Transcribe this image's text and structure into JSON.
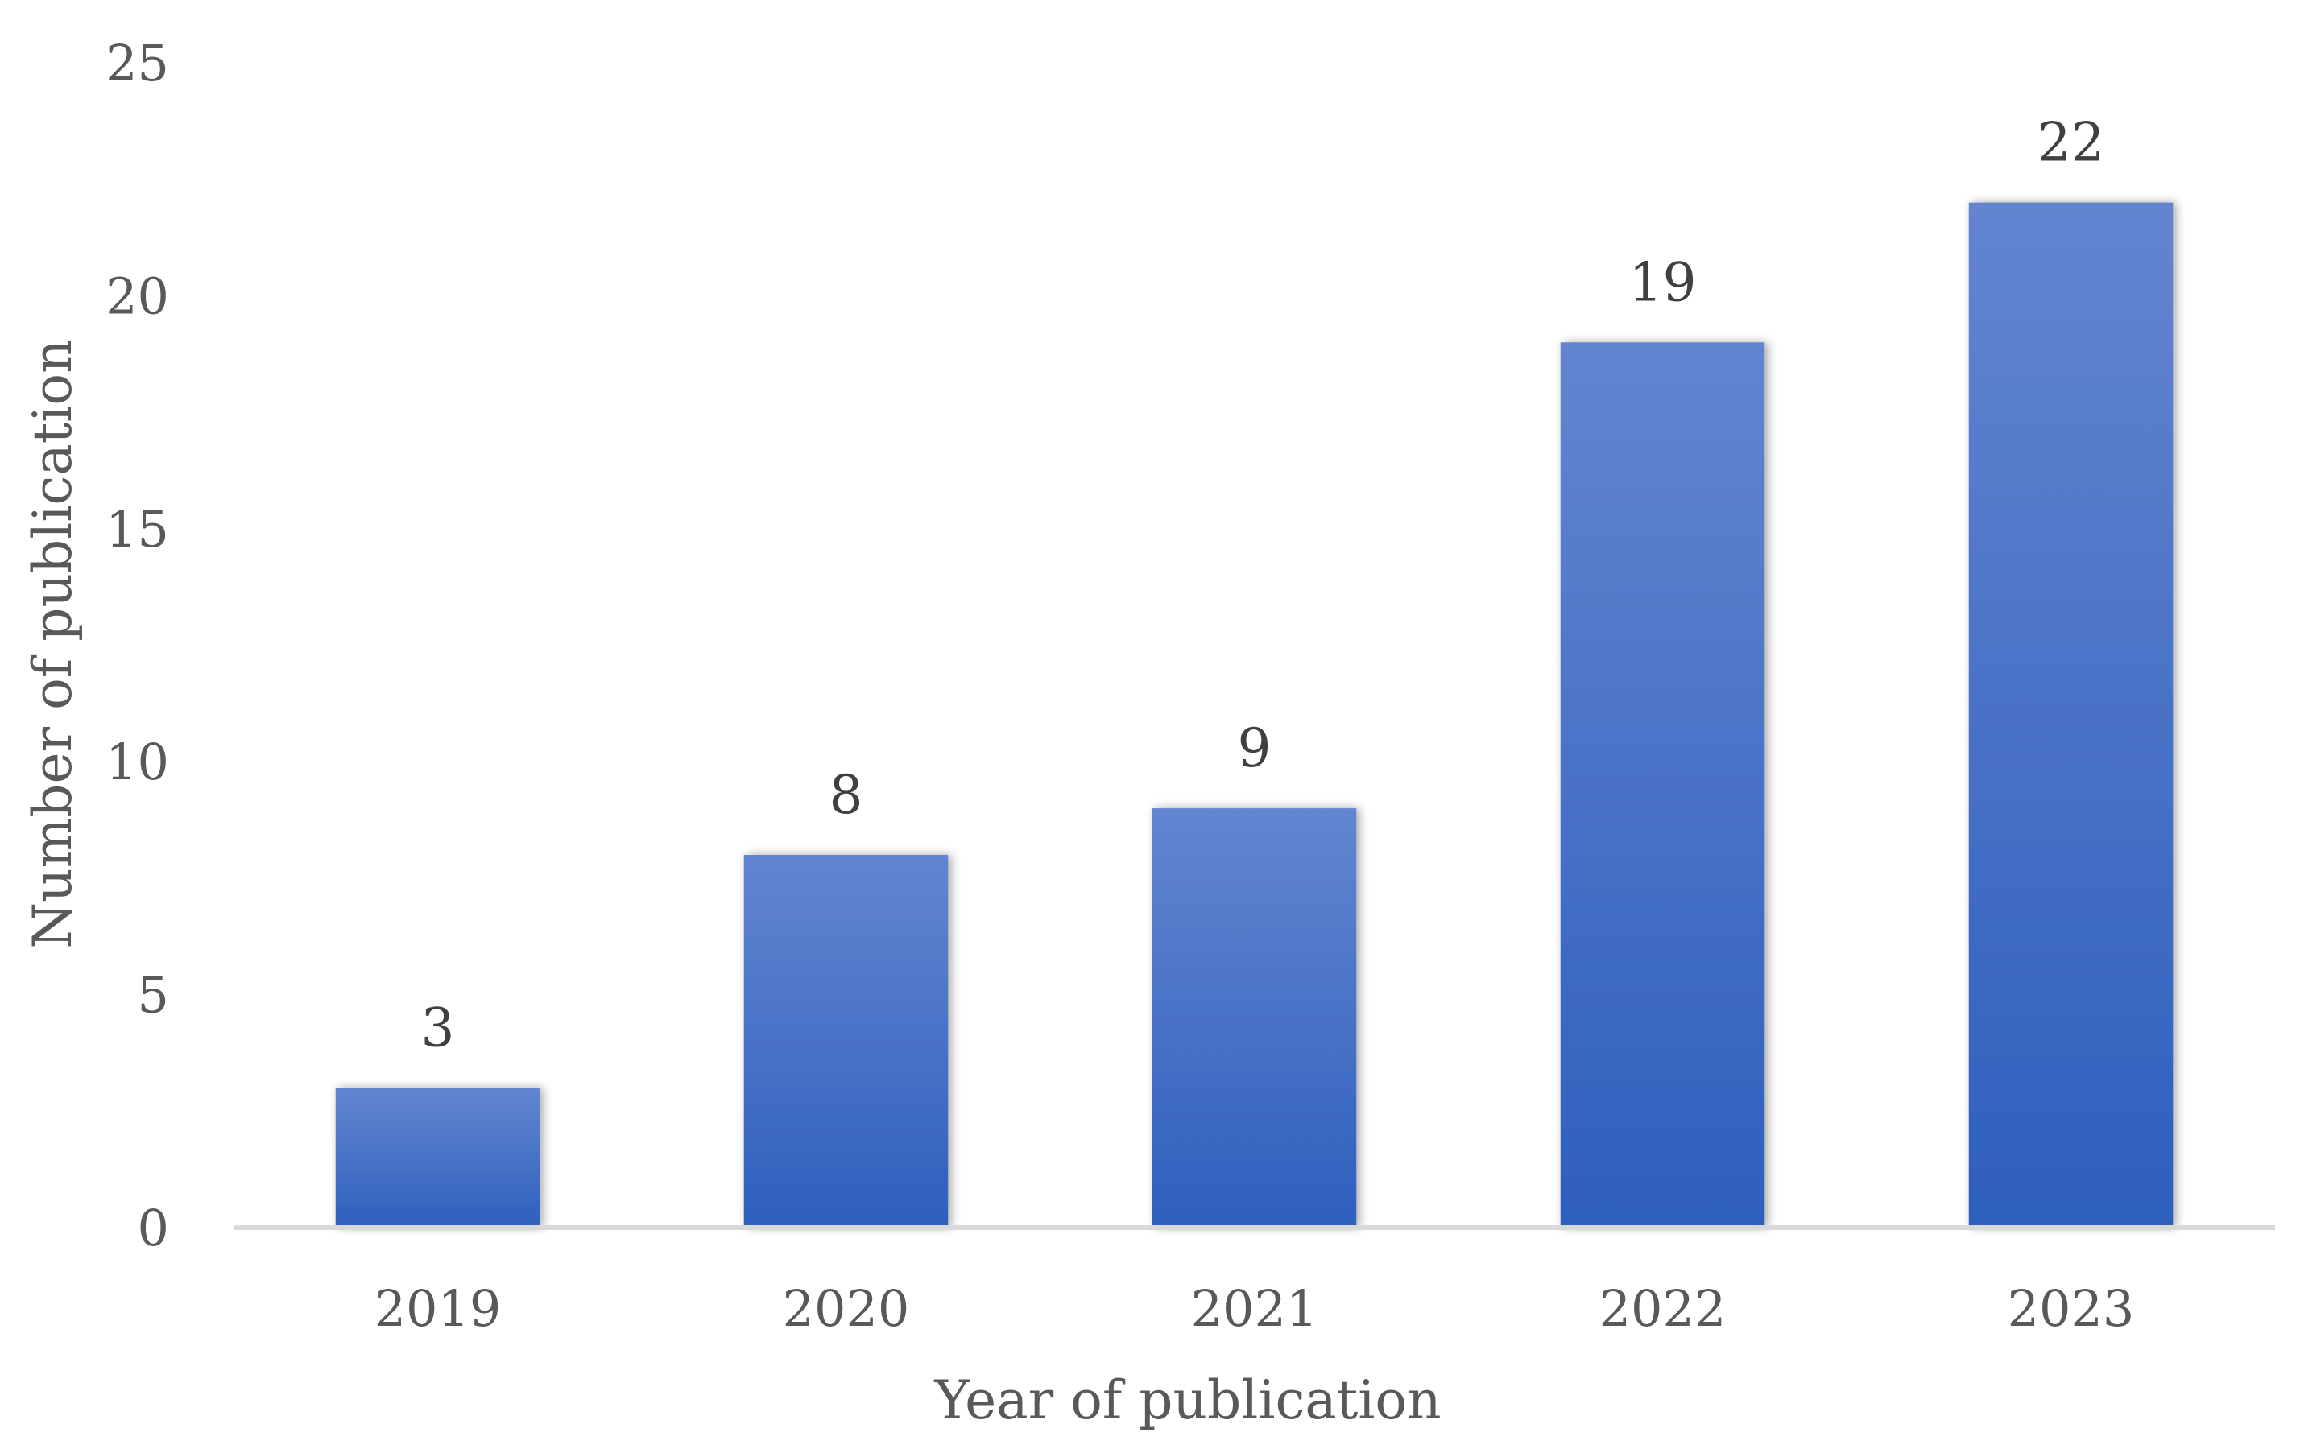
{
  "chart_data": {
    "type": "bar",
    "title": "",
    "xlabel": "Year of publication",
    "ylabel": "Number of publication",
    "categories": [
      "2019",
      "2020",
      "2021",
      "2022",
      "2023"
    ],
    "values": [
      3,
      8,
      9,
      19,
      22
    ],
    "ylim": [
      0,
      25
    ],
    "yticks": [
      "0",
      "5",
      "10",
      "15",
      "20",
      "25"
    ],
    "grid": false,
    "legend": "none",
    "colors": {
      "bar_top": "#6385d0",
      "bar_bottom": "#2e5fbd",
      "axis": "#d9d9d9"
    }
  }
}
